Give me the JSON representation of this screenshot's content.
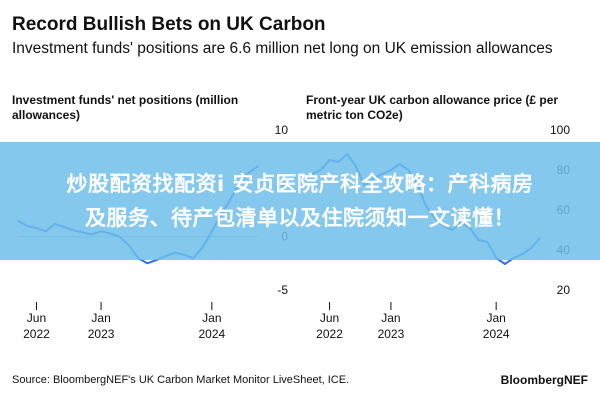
{
  "title": "Record Bullish Bets on UK Carbon",
  "subtitle": "Investment funds' positions are 6.6 million net long on UK emission allowances",
  "overlay": {
    "line1": "炒股配资找配资i 安贞医院产科全攻略：产科病房",
    "line2": "及服务、待产包清单以及住院须知一文读懂！"
  },
  "source": "Source: BloombergNEF's UK Carbon Market Monitor LiveSheet, ICE.",
  "brand": "BloombergNEF",
  "colors": {
    "line": "#2f6fe0",
    "overlay": "#6ebeeb",
    "zero_line": "#bbbbbb"
  },
  "chart_data": [
    {
      "type": "line",
      "title": "Investment funds' net positions (million allowances)",
      "x_tick_labels": [
        [
          "Jun",
          "2022"
        ],
        [
          "Jan",
          "2023"
        ],
        [
          "Jan",
          "2024"
        ]
      ],
      "x_ticks": [
        "2022-06",
        "2023-01",
        "2024-01"
      ],
      "y_tick_labels": [
        "10",
        "5",
        "0",
        "-5"
      ],
      "ylim": [
        -5,
        10
      ],
      "series": [
        {
          "x": [
            "2022-04",
            "2022-05",
            "2022-06",
            "2022-07",
            "2022-08",
            "2022-09",
            "2022-10",
            "2022-11",
            "2022-12",
            "2023-01",
            "2023-02",
            "2023-03",
            "2023-04",
            "2023-05",
            "2023-06",
            "2023-07",
            "2023-08",
            "2023-09",
            "2023-10",
            "2023-11",
            "2023-12",
            "2024-01",
            "2024-02",
            "2024-03",
            "2024-04",
            "2024-05",
            "2024-06"
          ],
          "values": [
            1.5,
            1.0,
            0.8,
            0.5,
            1.2,
            0.9,
            0.6,
            0.4,
            0.2,
            0.5,
            0.3,
            0.0,
            -0.8,
            -2.0,
            -2.5,
            -2.2,
            -1.8,
            -1.5,
            -1.7,
            -2.0,
            -1.0,
            0.5,
            2.0,
            3.5,
            5.0,
            6.0,
            6.6
          ]
        }
      ]
    },
    {
      "type": "line",
      "title": "Front-year UK carbon allowance price (£ per metric ton CO2e)",
      "x_tick_labels": [
        [
          "Jun",
          "2022"
        ],
        [
          "Jan",
          "2023"
        ],
        [
          "Jan",
          "2024"
        ]
      ],
      "x_ticks": [
        "2022-06",
        "2023-01",
        "2024-01"
      ],
      "y_tick_labels": [
        "100",
        "80",
        "60",
        "40",
        "20"
      ],
      "ylim": [
        20,
        100
      ],
      "series": [
        {
          "x": [
            "2022-04",
            "2022-05",
            "2022-06",
            "2022-07",
            "2022-08",
            "2022-09",
            "2022-10",
            "2022-11",
            "2022-12",
            "2023-01",
            "2023-02",
            "2023-03",
            "2023-04",
            "2023-05",
            "2023-06",
            "2023-07",
            "2023-08",
            "2023-09",
            "2023-10",
            "2023-11",
            "2023-12",
            "2024-01",
            "2024-02",
            "2024-03",
            "2024-04",
            "2024-05",
            "2024-06"
          ],
          "values": [
            78,
            80,
            85,
            84,
            88,
            82,
            72,
            76,
            78,
            80,
            83,
            80,
            73,
            62,
            56,
            52,
            50,
            54,
            51,
            45,
            44,
            36,
            33,
            36,
            38,
            41,
            46
          ]
        }
      ]
    }
  ]
}
